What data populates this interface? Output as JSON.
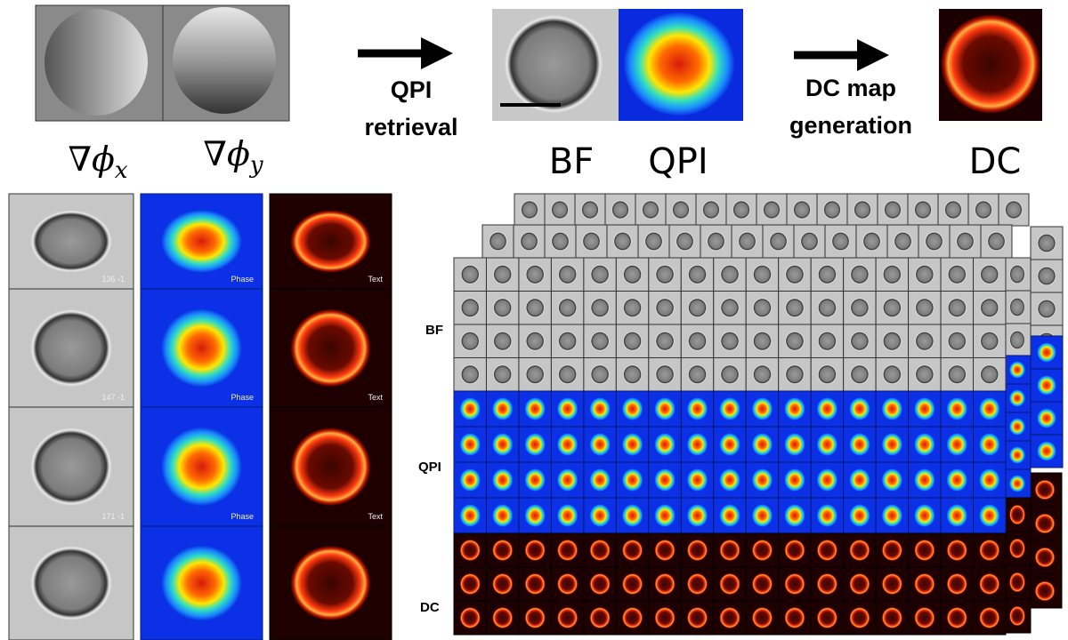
{
  "header": {
    "gradient_x": {
      "symbol": "∇ϕ",
      "subscript": "x"
    },
    "gradient_y": {
      "symbol": "∇ϕ",
      "subscript": "y"
    },
    "step1": [
      "QPI",
      "retrieval"
    ],
    "bf_label": "BF",
    "qpi_label": "QPI",
    "step2": [
      "DC map",
      "generation"
    ],
    "dc_label": "DC"
  },
  "gallery": {
    "rows": [
      {
        "id": "136 -1",
        "phase": "Phase",
        "text": "Text"
      },
      {
        "id": "147 -1",
        "phase": "Phase",
        "text": "Text"
      },
      {
        "id": "171 -1",
        "phase": "Phase",
        "text": "Text"
      }
    ]
  },
  "mosaic": {
    "labels": [
      "BF",
      "QPI",
      "DC"
    ]
  }
}
